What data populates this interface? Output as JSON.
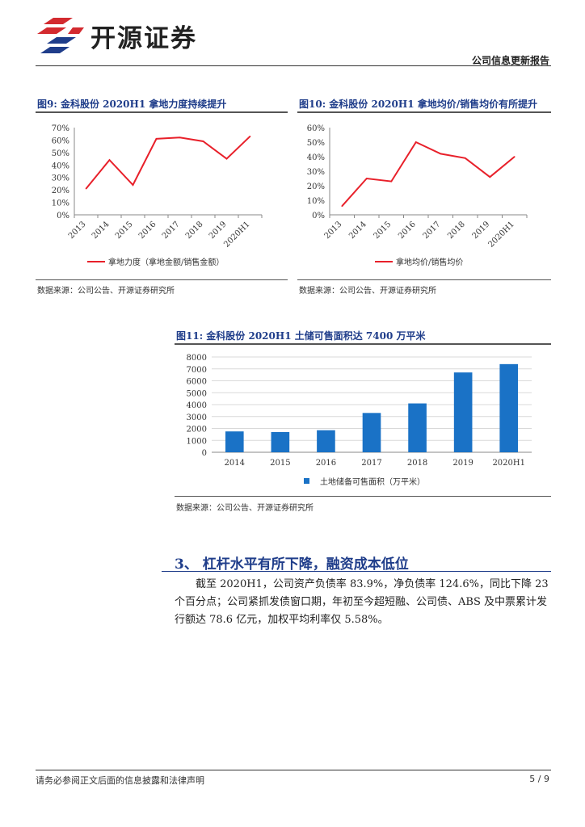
{
  "header": {
    "logo_text": "开源证券",
    "report_type": "公司信息更新报告"
  },
  "figures": [
    {
      "title": "图9: 金科股份 2020H1 拿地力度持续提升",
      "source": "数据来源：公司公告、开源证券研究所",
      "chart_data": {
        "type": "line",
        "title": "图9: 金科股份 2020H1 拿地力度持续提升",
        "categories": [
          "2013",
          "2014",
          "2015",
          "2016",
          "2017",
          "2018",
          "2019",
          "2020H1"
        ],
        "series": [
          {
            "name": "拿地力度（拿地金额/销售金额）",
            "values": [
              21,
              44,
              24,
              61,
              62,
              59,
              45,
              63
            ]
          }
        ],
        "y_ticks": [
          "0%",
          "10%",
          "20%",
          "30%",
          "40%",
          "50%",
          "60%",
          "70%"
        ],
        "ylim": [
          0,
          70
        ],
        "color": "#e8202a",
        "legend_position": "bottom"
      }
    },
    {
      "title": "图10: 金科股份 2020H1 拿地均价/销售均价有所提升",
      "source": "数据来源：公司公告、开源证券研究所",
      "chart_data": {
        "type": "line",
        "title": "图10: 金科股份 2020H1 拿地均价/销售均价有所提升",
        "categories": [
          "2013",
          "2014",
          "2015",
          "2016",
          "2017",
          "2018",
          "2019",
          "2020H1"
        ],
        "series": [
          {
            "name": "拿地均价/销售均价",
            "values": [
              6,
              25,
              23,
              50,
              42,
              39,
              26,
              40
            ]
          }
        ],
        "y_ticks": [
          "0%",
          "10%",
          "20%",
          "30%",
          "40%",
          "50%",
          "60%"
        ],
        "ylim": [
          0,
          60
        ],
        "color": "#e8202a",
        "legend_position": "bottom"
      }
    },
    {
      "title": "图11: 金科股份 2020H1 土储可售面积达 7400 万平米",
      "source": "数据来源：公司公告、开源证券研究所",
      "chart_data": {
        "type": "bar",
        "title": "图11: 金科股份 2020H1 土储可售面积达 7400 万平米",
        "categories": [
          "2014",
          "2015",
          "2016",
          "2017",
          "2018",
          "2019",
          "2020H1"
        ],
        "series": [
          {
            "name": "土地储备可售面积（万平米）",
            "values": [
              1750,
              1700,
              1850,
              3300,
              4100,
              6700,
              7400
            ]
          }
        ],
        "y_ticks": [
          "0",
          "1000",
          "2000",
          "3000",
          "4000",
          "5000",
          "6000",
          "7000",
          "8000"
        ],
        "ylim": [
          0,
          8000
        ],
        "color": "#1a72c6",
        "legend_position": "bottom"
      }
    }
  ],
  "section": {
    "title": "3、 杠杆水平有所下降，融资成本低位",
    "body": "截至 2020H1，公司资产负债率 83.9%，净负债率 124.6%，同比下降 23 个百分点；公司紧抓发债窗口期，年初至今超短融、公司债、ABS 及中票累计发行额达 78.6 亿元，加权平均利率仅 5.58%。"
  },
  "footer": {
    "disclaimer": "请务必参阅正文后面的信息披露和法律声明",
    "page": "5 / 9"
  }
}
